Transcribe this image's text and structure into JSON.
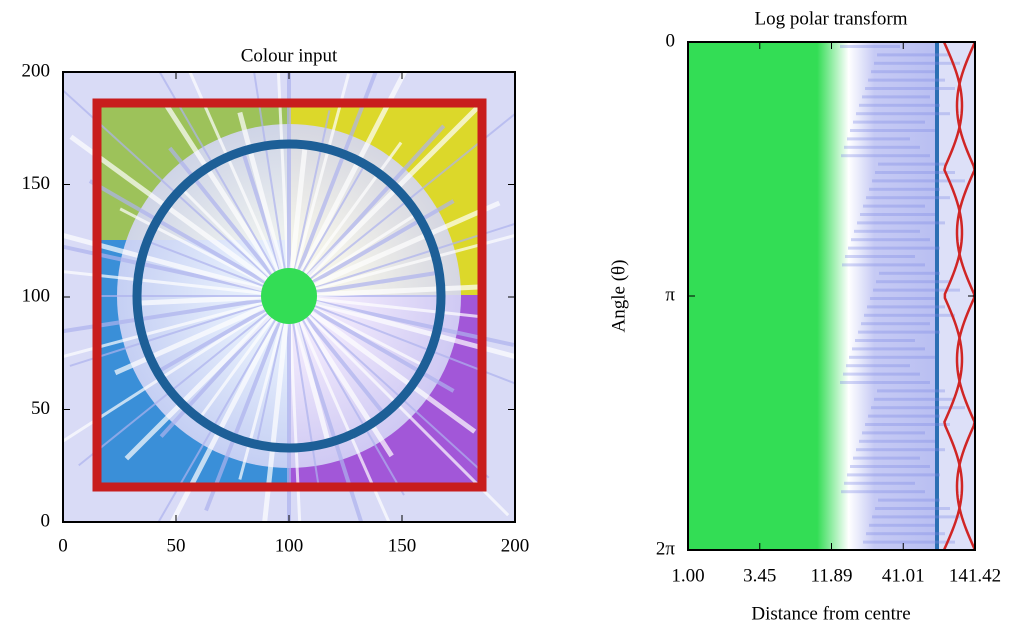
{
  "chart_data": [
    {
      "type": "image",
      "title": "Colour input",
      "xlim": [
        0,
        200
      ],
      "ylim": [
        0,
        200
      ],
      "xticks": [
        0,
        50,
        100,
        150,
        200
      ],
      "yticks": [
        0,
        50,
        100,
        150,
        200
      ]
    },
    {
      "type": "image",
      "title": "Log polar transform",
      "xlabel": "Distance from centre",
      "ylabel": "Angle (θ)",
      "xscale": "log",
      "y_inverted": true,
      "xlim": [
        1,
        141.42
      ],
      "ylim": [
        0,
        6.283185
      ],
      "xticks": [
        {
          "value": 1,
          "label": "1.00"
        },
        3.45,
        11.89,
        41.01,
        141.42
      ],
      "yticks": [
        0,
        {
          "value": 3.141593,
          "label": "π"
        },
        {
          "value": 6.283185,
          "label": "2π"
        }
      ]
    }
  ]
}
